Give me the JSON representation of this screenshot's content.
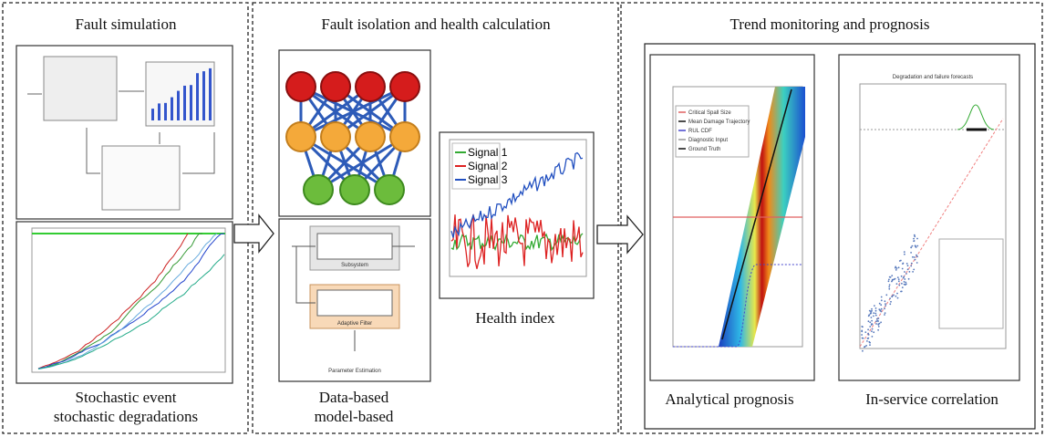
{
  "panels": [
    {
      "title": "Fault simulation",
      "captions": [
        "Stochastic event",
        "stochastic degradations"
      ]
    },
    {
      "title": "Fault isolation and health calculation",
      "captions": [
        "Data-based",
        "model-based"
      ]
    },
    {
      "title": "Trend monitoring and prognosis",
      "captions": [
        "Analytical prognosis",
        "In-service correlation"
      ]
    }
  ],
  "health_index": {
    "legend": [
      "Signal 1",
      "Signal 2",
      "Signal 3"
    ],
    "caption": "Health index"
  },
  "model_diagram": {
    "blocks": [
      "Subsystem",
      "Adaptive Filter"
    ],
    "footer": "Parameter Estimation"
  },
  "prognosis_legend": [
    "Critical Spall Size",
    "Mean Damage Trajectory",
    "RUL CDF",
    "Diagnostic Input",
    "Ground Truth"
  ],
  "correlation_title": "Degradation and failure forecasts"
}
